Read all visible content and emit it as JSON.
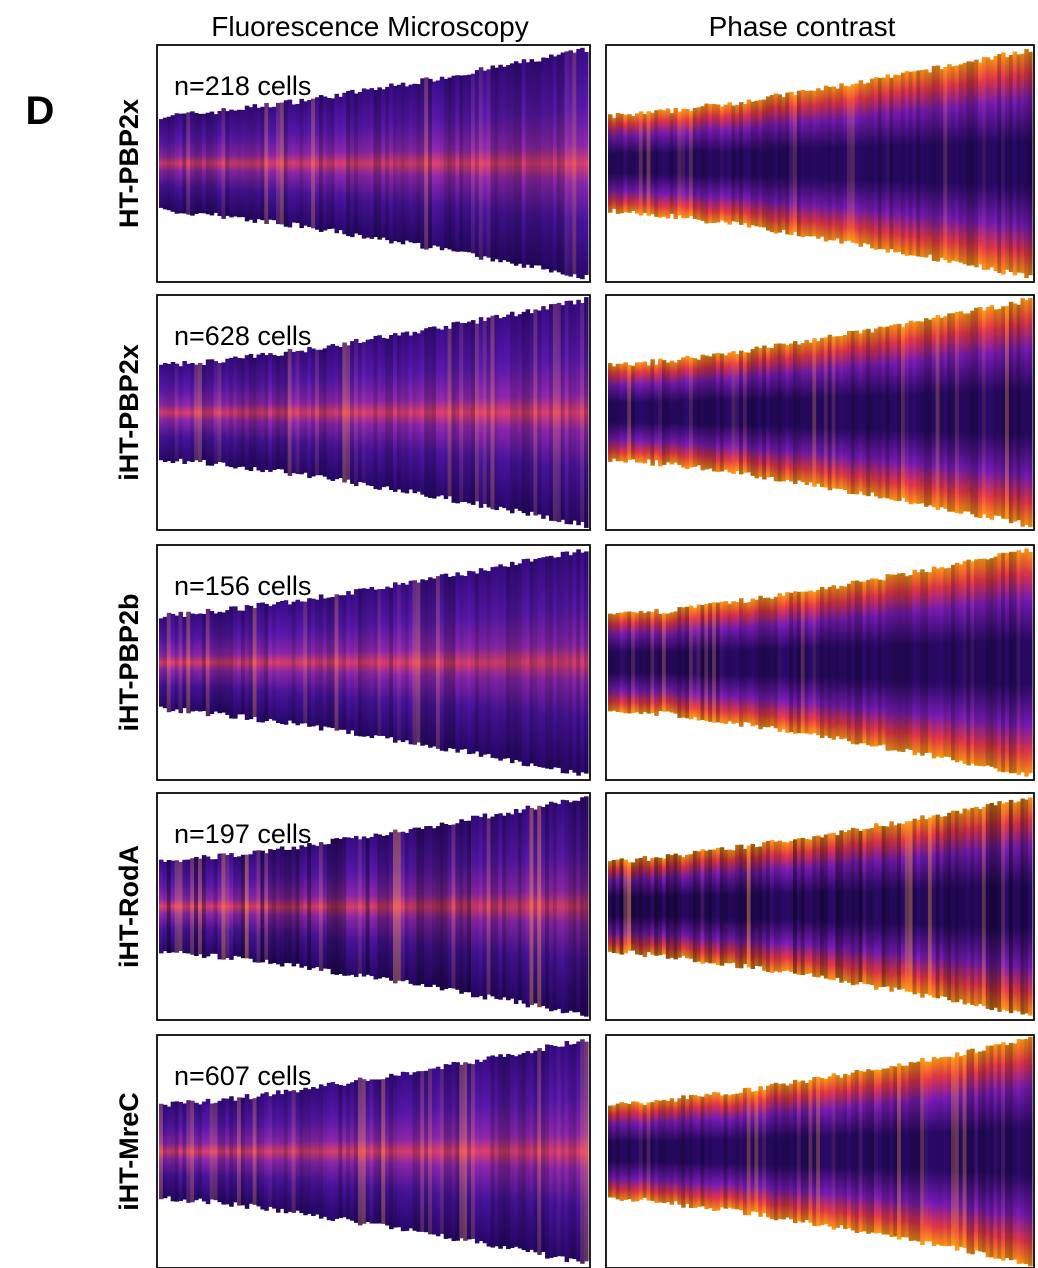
{
  "panel_label": "D",
  "columns": [
    "Fluorescence Microscopy",
    "Phase contrast"
  ],
  "rows": [
    {
      "label": "HT-PBP2x",
      "count": "n=218 cells"
    },
    {
      "label": "iHT-PBP2x",
      "count": "n=628 cells"
    },
    {
      "label": "iHT-PBP2b",
      "count": "n=156 cells"
    },
    {
      "label": "iHT-RodA",
      "count": "n=197 cells"
    },
    {
      "label": "iHT-MreC",
      "count": "n=607 cells"
    }
  ]
}
